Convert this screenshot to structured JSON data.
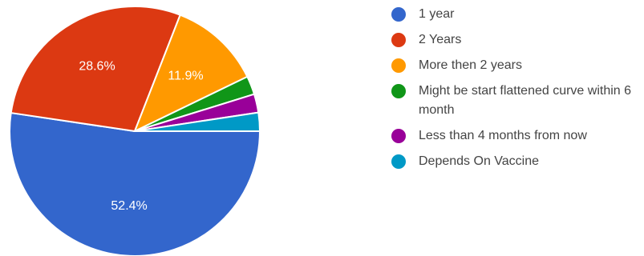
{
  "chart_data": {
    "type": "pie",
    "title": "",
    "slices": [
      {
        "label": "1 year",
        "value": 52.4,
        "color": "#3366cc",
        "data_label": "52.4%"
      },
      {
        "label": "2 Years",
        "value": 28.6,
        "color": "#dc3912",
        "data_label": "28.6%"
      },
      {
        "label": "More then 2 years",
        "value": 11.9,
        "color": "#ff9900",
        "data_label": "11.9%"
      },
      {
        "label": "Might be start flattened curve within 6 month",
        "value": 2.4,
        "color": "#109618",
        "data_label": ""
      },
      {
        "label": "Less than 4 months from now",
        "value": 2.4,
        "color": "#990099",
        "data_label": ""
      },
      {
        "label": "Depends On Vaccine",
        "value": 2.4,
        "color": "#0099c6",
        "data_label": ""
      }
    ],
    "legend_position": "right"
  }
}
